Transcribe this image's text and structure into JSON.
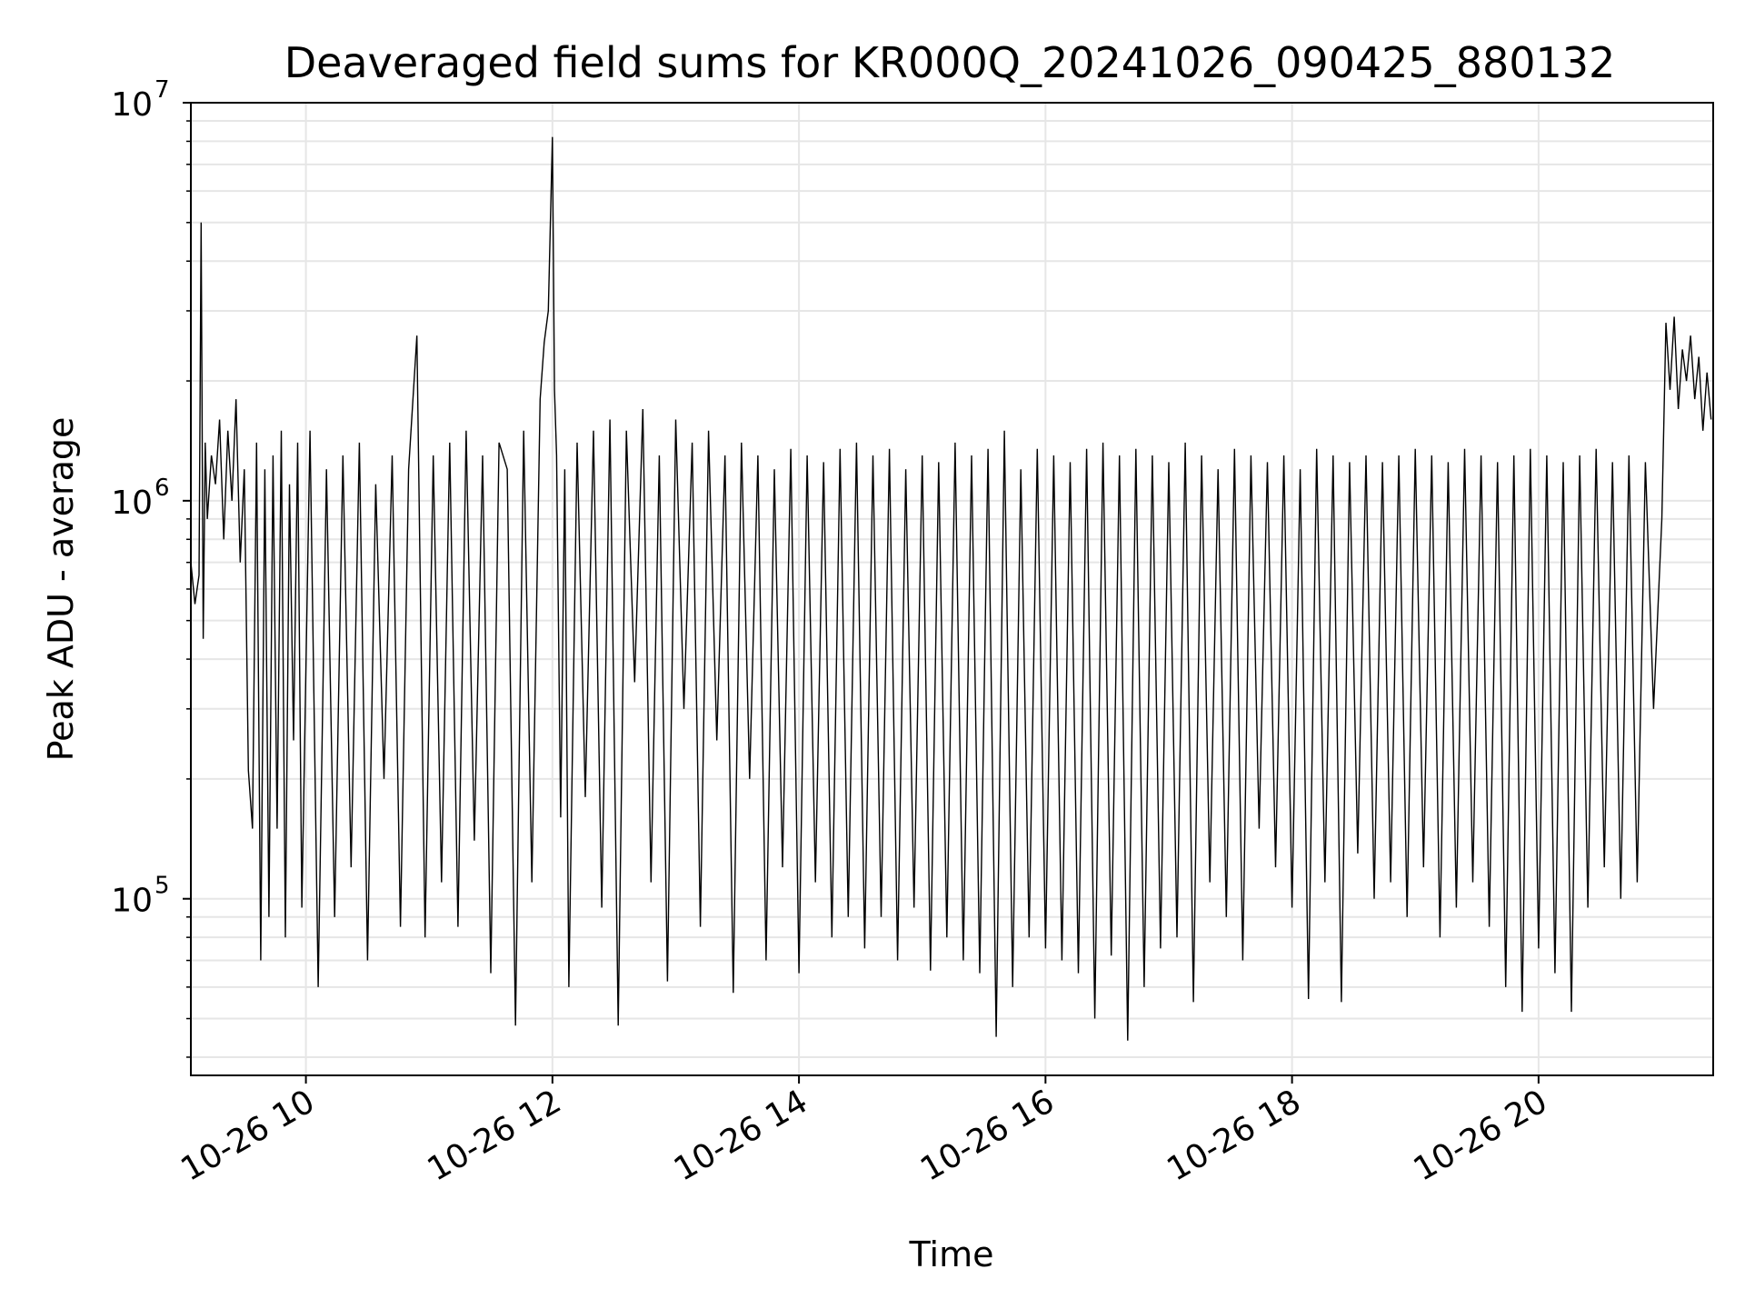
{
  "chart_data": {
    "type": "line",
    "title": "Deaveraged field sums for KR000Q_20241026_090425_880132",
    "xlabel": "Time",
    "ylabel": "Peak ADU - average",
    "yscale": "log",
    "grid": true,
    "legend": "none",
    "colors": {
      "line": "#000000",
      "grid": "#e6e6e6",
      "axes": "#000000"
    },
    "xlim": [
      "2024-10-26 09:04",
      "2024-10-26 21:25"
    ],
    "ylim": [
      36000,
      10000000
    ],
    "x_ticks": [
      {
        "value": "2024-10-26 10:00",
        "label": "10-26 10"
      },
      {
        "value": "2024-10-26 12:00",
        "label": "10-26 12"
      },
      {
        "value": "2024-10-26 14:00",
        "label": "10-26 14"
      },
      {
        "value": "2024-10-26 16:00",
        "label": "10-26 16"
      },
      {
        "value": "2024-10-26 18:00",
        "label": "10-26 18"
      },
      {
        "value": "2024-10-26 20:00",
        "label": "10-26 20"
      }
    ],
    "y_ticks": [
      {
        "value": 100000,
        "base": "10",
        "exp": "5"
      },
      {
        "value": 1000000,
        "base": "10",
        "exp": "6"
      },
      {
        "value": 10000000,
        "base": "10",
        "exp": "7"
      }
    ],
    "series": [
      {
        "x": [
          "2024-10-26 09:04",
          "2024-10-26 09:06",
          "2024-10-26 09:08",
          "2024-10-26 09:09",
          "2024-10-26 09:10",
          "2024-10-26 09:11",
          "2024-10-26 09:12",
          "2024-10-26 09:14",
          "2024-10-26 09:16",
          "2024-10-26 09:18",
          "2024-10-26 09:20",
          "2024-10-26 09:22",
          "2024-10-26 09:24",
          "2024-10-26 09:26",
          "2024-10-26 09:28",
          "2024-10-26 09:30",
          "2024-10-26 09:32",
          "2024-10-26 09:34",
          "2024-10-26 09:36",
          "2024-10-26 09:38",
          "2024-10-26 09:40",
          "2024-10-26 09:42",
          "2024-10-26 09:44",
          "2024-10-26 09:46",
          "2024-10-26 09:48",
          "2024-10-26 09:50",
          "2024-10-26 09:52",
          "2024-10-26 09:54",
          "2024-10-26 09:56",
          "2024-10-26 09:58",
          "2024-10-26 10:02",
          "2024-10-26 10:06",
          "2024-10-26 10:10",
          "2024-10-26 10:14",
          "2024-10-26 10:18",
          "2024-10-26 10:22",
          "2024-10-26 10:26",
          "2024-10-26 10:30",
          "2024-10-26 10:34",
          "2024-10-26 10:38",
          "2024-10-26 10:42",
          "2024-10-26 10:46",
          "2024-10-26 10:50",
          "2024-10-26 10:54",
          "2024-10-26 10:58",
          "2024-10-26 11:02",
          "2024-10-26 11:06",
          "2024-10-26 11:10",
          "2024-10-26 11:14",
          "2024-10-26 11:18",
          "2024-10-26 11:22",
          "2024-10-26 11:26",
          "2024-10-26 11:30",
          "2024-10-26 11:34",
          "2024-10-26 11:38",
          "2024-10-26 11:42",
          "2024-10-26 11:46",
          "2024-10-26 11:50",
          "2024-10-26 11:54",
          "2024-10-26 11:56",
          "2024-10-26 11:58",
          "2024-10-26 12:00",
          "2024-10-26 12:01",
          "2024-10-26 12:02",
          "2024-10-26 12:04",
          "2024-10-26 12:06",
          "2024-10-26 12:08",
          "2024-10-26 12:12",
          "2024-10-26 12:16",
          "2024-10-26 12:20",
          "2024-10-26 12:24",
          "2024-10-26 12:28",
          "2024-10-26 12:32",
          "2024-10-26 12:36",
          "2024-10-26 12:40",
          "2024-10-26 12:44",
          "2024-10-26 12:48",
          "2024-10-26 12:52",
          "2024-10-26 12:56",
          "2024-10-26 13:00",
          "2024-10-26 13:04",
          "2024-10-26 13:08",
          "2024-10-26 13:12",
          "2024-10-26 13:16",
          "2024-10-26 13:20",
          "2024-10-26 13:24",
          "2024-10-26 13:28",
          "2024-10-26 13:32",
          "2024-10-26 13:36",
          "2024-10-26 13:40",
          "2024-10-26 13:44",
          "2024-10-26 13:48",
          "2024-10-26 13:52",
          "2024-10-26 13:56",
          "2024-10-26 14:00",
          "2024-10-26 14:04",
          "2024-10-26 14:08",
          "2024-10-26 14:12",
          "2024-10-26 14:16",
          "2024-10-26 14:20",
          "2024-10-26 14:24",
          "2024-10-26 14:28",
          "2024-10-26 14:32",
          "2024-10-26 14:36",
          "2024-10-26 14:40",
          "2024-10-26 14:44",
          "2024-10-26 14:48",
          "2024-10-26 14:52",
          "2024-10-26 14:56",
          "2024-10-26 15:00",
          "2024-10-26 15:04",
          "2024-10-26 15:08",
          "2024-10-26 15:12",
          "2024-10-26 15:16",
          "2024-10-26 15:20",
          "2024-10-26 15:24",
          "2024-10-26 15:28",
          "2024-10-26 15:32",
          "2024-10-26 15:36",
          "2024-10-26 15:40",
          "2024-10-26 15:44",
          "2024-10-26 15:48",
          "2024-10-26 15:52",
          "2024-10-26 15:56",
          "2024-10-26 16:00",
          "2024-10-26 16:04",
          "2024-10-26 16:08",
          "2024-10-26 16:12",
          "2024-10-26 16:16",
          "2024-10-26 16:20",
          "2024-10-26 16:24",
          "2024-10-26 16:28",
          "2024-10-26 16:32",
          "2024-10-26 16:36",
          "2024-10-26 16:40",
          "2024-10-26 16:44",
          "2024-10-26 16:48",
          "2024-10-26 16:52",
          "2024-10-26 16:56",
          "2024-10-26 17:00",
          "2024-10-26 17:04",
          "2024-10-26 17:08",
          "2024-10-26 17:12",
          "2024-10-26 17:16",
          "2024-10-26 17:20",
          "2024-10-26 17:24",
          "2024-10-26 17:28",
          "2024-10-26 17:32",
          "2024-10-26 17:36",
          "2024-10-26 17:40",
          "2024-10-26 17:44",
          "2024-10-26 17:48",
          "2024-10-26 17:52",
          "2024-10-26 17:56",
          "2024-10-26 18:00",
          "2024-10-26 18:04",
          "2024-10-26 18:08",
          "2024-10-26 18:12",
          "2024-10-26 18:16",
          "2024-10-26 18:20",
          "2024-10-26 18:24",
          "2024-10-26 18:28",
          "2024-10-26 18:32",
          "2024-10-26 18:36",
          "2024-10-26 18:40",
          "2024-10-26 18:44",
          "2024-10-26 18:48",
          "2024-10-26 18:52",
          "2024-10-26 18:56",
          "2024-10-26 19:00",
          "2024-10-26 19:04",
          "2024-10-26 19:08",
          "2024-10-26 19:12",
          "2024-10-26 19:16",
          "2024-10-26 19:20",
          "2024-10-26 19:24",
          "2024-10-26 19:28",
          "2024-10-26 19:32",
          "2024-10-26 19:36",
          "2024-10-26 19:40",
          "2024-10-26 19:44",
          "2024-10-26 19:48",
          "2024-10-26 19:52",
          "2024-10-26 19:56",
          "2024-10-26 20:00",
          "2024-10-26 20:04",
          "2024-10-26 20:08",
          "2024-10-26 20:12",
          "2024-10-26 20:16",
          "2024-10-26 20:20",
          "2024-10-26 20:24",
          "2024-10-26 20:28",
          "2024-10-26 20:32",
          "2024-10-26 20:36",
          "2024-10-26 20:40",
          "2024-10-26 20:44",
          "2024-10-26 20:48",
          "2024-10-26 20:52",
          "2024-10-26 20:56",
          "2024-10-26 21:00",
          "2024-10-26 21:02",
          "2024-10-26 21:04",
          "2024-10-26 21:06",
          "2024-10-26 21:08",
          "2024-10-26 21:10",
          "2024-10-26 21:12",
          "2024-10-26 21:14",
          "2024-10-26 21:16",
          "2024-10-26 21:18",
          "2024-10-26 21:20",
          "2024-10-26 21:22",
          "2024-10-26 21:24"
        ],
        "y": [
          700000,
          550000,
          650000,
          5000000,
          450000,
          1400000,
          900000,
          1300000,
          1100000,
          1600000,
          800000,
          1500000,
          1000000,
          1800000,
          700000,
          1200000,
          210000,
          150000,
          1400000,
          70000,
          1200000,
          90000,
          1300000,
          150000,
          1500000,
          80000,
          1100000,
          250000,
          1400000,
          95000,
          1500000,
          60000,
          1200000,
          90000,
          1300000,
          120000,
          1400000,
          70000,
          1100000,
          200000,
          1300000,
          85000,
          1200000,
          2600000,
          80000,
          1300000,
          110000,
          1400000,
          85000,
          1500000,
          140000,
          1300000,
          65000,
          1400000,
          1200000,
          48000,
          1500000,
          110000,
          1800000,
          2500000,
          3000000,
          8200000,
          1900000,
          1300000,
          160000,
          1200000,
          60000,
          1400000,
          180000,
          1500000,
          95000,
          1600000,
          48000,
          1500000,
          350000,
          1700000,
          110000,
          1300000,
          62000,
          1600000,
          300000,
          1400000,
          85000,
          1500000,
          250000,
          1300000,
          58000,
          1400000,
          200000,
          1300000,
          70000,
          1200000,
          120000,
          1350000,
          65000,
          1300000,
          110000,
          1250000,
          80000,
          1350000,
          90000,
          1400000,
          75000,
          1300000,
          90000,
          1350000,
          70000,
          1200000,
          95000,
          1300000,
          66000,
          1250000,
          80000,
          1400000,
          70000,
          1300000,
          65000,
          1350000,
          45000,
          1500000,
          60000,
          1200000,
          80000,
          1350000,
          75000,
          1300000,
          70000,
          1250000,
          65000,
          1350000,
          50000,
          1400000,
          72000,
          1300000,
          44000,
          1350000,
          60000,
          1300000,
          75000,
          1250000,
          80000,
          1400000,
          55000,
          1300000,
          110000,
          1200000,
          90000,
          1350000,
          70000,
          1300000,
          150000,
          1250000,
          120000,
          1300000,
          95000,
          1200000,
          56000,
          1350000,
          110000,
          1300000,
          55000,
          1250000,
          130000,
          1300000,
          100000,
          1250000,
          110000,
          1300000,
          90000,
          1350000,
          120000,
          1300000,
          80000,
          1250000,
          95000,
          1350000,
          110000,
          1300000,
          85000,
          1250000,
          60000,
          1300000,
          52000,
          1350000,
          75000,
          1300000,
          65000,
          1250000,
          52000,
          1300000,
          95000,
          1350000,
          120000,
          1250000,
          100000,
          1300000,
          110000,
          1250000,
          300000,
          900000,
          2800000,
          1900000,
          2900000,
          1700000,
          2400000,
          2000000,
          2600000,
          1800000,
          2300000,
          1500000,
          2100000,
          1600000
        ]
      }
    ]
  }
}
